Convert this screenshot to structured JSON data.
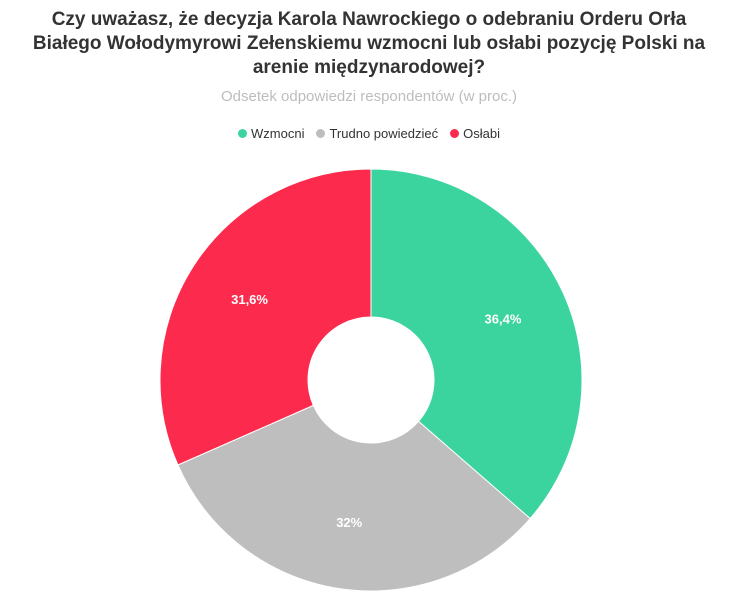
{
  "chart_data": {
    "type": "pie",
    "title": "Czy uważasz, że decyzja Karola Nawrockiego o odebraniu Orderu Orła Białego Wołodymyrowi Zełenskiemu wzmocni lub osłabi pozycję Polski na arenie międzynarodowej?",
    "subtitle": "Odsetek odpowiedzi respondentów (w proc.)",
    "legend_position": "top",
    "donut": true,
    "categories": [
      "Wzmocni",
      "Trudno powiedzieć",
      "Osłabi"
    ],
    "values": [
      36.4,
      32,
      31.6
    ],
    "data_labels": [
      "36,4%",
      "32%",
      "31,6%"
    ],
    "colors": [
      "#3bd49e",
      "#bebebe",
      "#fc2a4c"
    ]
  }
}
